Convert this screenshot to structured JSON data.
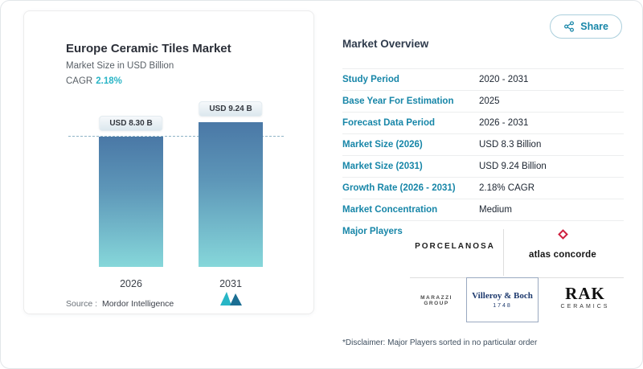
{
  "share": {
    "label": "Share"
  },
  "chart_panel": {
    "title": "Europe Ceramic Tiles Market",
    "subtitle": "Market Size in USD Billion",
    "cagr_label": "CAGR",
    "cagr_value": "2.18%",
    "source_label": "Source :",
    "source_value": "Mordor Intelligence"
  },
  "chart_data": {
    "type": "bar",
    "title": "Europe Ceramic Tiles Market",
    "ylabel": "Market Size in USD Billion",
    "categories": [
      "2026",
      "2031"
    ],
    "values": [
      8.3,
      9.24
    ],
    "bar_labels": [
      "USD 8.30 B",
      "USD 9.24 B"
    ],
    "dashed_reference_value": 8.3,
    "ylim": [
      0,
      10
    ],
    "grid": false,
    "legend": false,
    "cagr": "2.18%"
  },
  "overview": {
    "title": "Market Overview",
    "rows": [
      {
        "label": "Study Period",
        "value": "2020 - 2031"
      },
      {
        "label": "Base Year For Estimation",
        "value": "2025"
      },
      {
        "label": "Forecast Data Period",
        "value": "2026 - 2031"
      },
      {
        "label": "Market Size (2026)",
        "value": "USD 8.3 Billion"
      },
      {
        "label": "Market Size (2031)",
        "value": "USD 9.24 Billion"
      },
      {
        "label": "Growth Rate (2026 - 2031)",
        "value": "2.18% CAGR"
      },
      {
        "label": "Market Concentration",
        "value": "Medium"
      }
    ],
    "major_players": {
      "label": "Major Players",
      "logos": [
        {
          "name": "PORCELANOSA"
        },
        {
          "name": "atlas concorde"
        },
        {
          "name": "MARAZZI GROUP"
        },
        {
          "name": "Villeroy & Boch",
          "year": "1748"
        },
        {
          "name": "RAK",
          "sub": "CERAMICS"
        }
      ]
    },
    "disclaimer": "*Disclaimer: Major Players sorted in no particular order"
  },
  "colors": {
    "accent_teal": "#1786a8",
    "cagr_teal": "#2ab5c6",
    "bar_gradient_top": "#4a78a6",
    "bar_gradient_bottom": "#86d7da",
    "dashed_line": "#8fb4c6"
  }
}
